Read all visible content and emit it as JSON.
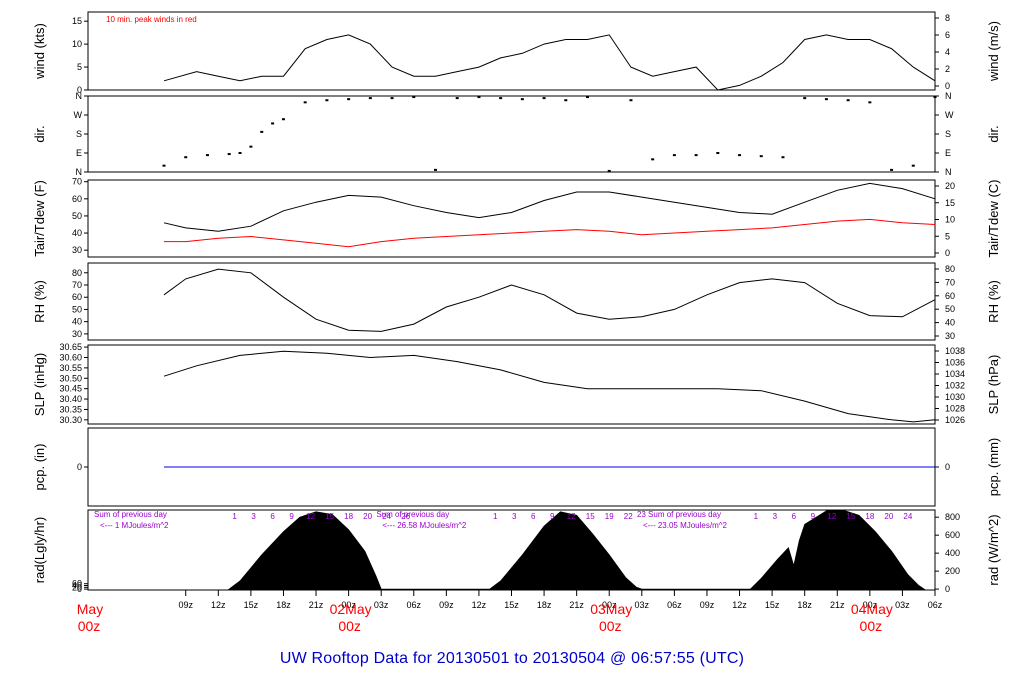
{
  "title": "UW Rooftop Data for 20130501  to  20130504 @ 06:57:55  (UTC)",
  "colors": {
    "ink": "#000000",
    "red": "#ff0000",
    "blue": "#0000ee",
    "purple": "#9900cc",
    "title": "#0000cc"
  },
  "time_axis": {
    "hour_ticks": [
      "09z",
      "12z",
      "15z",
      "18z",
      "21z",
      "00z",
      "03z",
      "06z",
      "09z",
      "12z",
      "15z",
      "18z",
      "21z",
      "00z",
      "03z",
      "06z",
      "09z",
      "12z",
      "15z",
      "18z",
      "21z",
      "00z",
      "03z",
      "06z"
    ],
    "day_labels": [
      {
        "day": "May",
        "hour": "00z",
        "at_hour": 0
      },
      {
        "day": "02May",
        "hour": "00z",
        "at_hour": 24
      },
      {
        "day": "03May",
        "hour": "00z",
        "at_hour": 48
      },
      {
        "day": "04May",
        "hour": "00z",
        "at_hour": 72
      }
    ]
  },
  "chart_data": [
    {
      "id": "wind",
      "type": "line",
      "ylabel_left": "wind (kts)",
      "ylabel_right": "wind (m/s)",
      "ylim": [
        0,
        17
      ],
      "left_ticks": [
        0,
        5,
        10,
        15
      ],
      "right_ticks": [
        0,
        2,
        4,
        6,
        8
      ],
      "note": "10 min. peak winds in red",
      "series": [
        {
          "color": "#000000",
          "x_hours": [
            7,
            10,
            12,
            14,
            16,
            18,
            20,
            22,
            24,
            26,
            28,
            30,
            32,
            34,
            36,
            38,
            40,
            42,
            44,
            46,
            48,
            50,
            52,
            54,
            56,
            58,
            60,
            62,
            64,
            66,
            68,
            70,
            72,
            74,
            76,
            78
          ],
          "y": [
            2,
            4,
            3,
            2,
            3,
            3,
            9,
            11,
            12,
            10,
            5,
            3,
            3,
            4,
            5,
            7,
            8,
            10,
            11,
            11,
            12,
            5,
            3,
            4,
            5,
            0,
            1,
            3,
            6,
            11,
            12,
            11,
            11,
            9,
            5,
            2
          ]
        }
      ]
    },
    {
      "id": "dir",
      "type": "scatter",
      "ylabel_left": "dir.",
      "ylabel_right": "dir.",
      "ylim": [
        0,
        360
      ],
      "tick_labels": [
        "N",
        "E",
        "S",
        "W",
        "N"
      ],
      "series": [
        {
          "color": "#000000",
          "x_hours": [
            7,
            9,
            11,
            13,
            14,
            15,
            16,
            17,
            18,
            20,
            22,
            24,
            26,
            28,
            30,
            32,
            34,
            36,
            38,
            40,
            42,
            44,
            46,
            48,
            50,
            52,
            54,
            56,
            58,
            60,
            62,
            64,
            66,
            68,
            70,
            72,
            74,
            76,
            78
          ],
          "y": [
            30,
            70,
            80,
            85,
            90,
            120,
            190,
            230,
            250,
            330,
            340,
            345,
            350,
            350,
            355,
            10,
            350,
            355,
            350,
            345,
            350,
            340,
            355,
            5,
            340,
            60,
            80,
            80,
            90,
            80,
            75,
            70,
            350,
            345,
            340,
            330,
            10,
            30,
            355
          ]
        }
      ]
    },
    {
      "id": "temp",
      "type": "line",
      "ylabel_left": "Tair/Tdew (F)",
      "ylabel_right": "Tair/Tdew (C)",
      "ylim": [
        26,
        71
      ],
      "left_ticks": [
        30,
        40,
        50,
        60,
        70
      ],
      "right_ticks": [
        0,
        5,
        10,
        15,
        20
      ],
      "series": [
        {
          "color": "#000000",
          "x_hours": [
            7,
            9,
            12,
            15,
            18,
            21,
            24,
            27,
            30,
            33,
            36,
            39,
            42,
            45,
            48,
            51,
            54,
            57,
            60,
            63,
            66,
            69,
            72,
            75,
            78
          ],
          "y": [
            46,
            43,
            41,
            44,
            53,
            58,
            62,
            61,
            56,
            52,
            49,
            52,
            59,
            64,
            64,
            61,
            58,
            55,
            52,
            51,
            58,
            65,
            69,
            66,
            60
          ]
        },
        {
          "color": "#ff0000",
          "x_hours": [
            7,
            9,
            12,
            15,
            18,
            21,
            24,
            27,
            30,
            33,
            36,
            39,
            42,
            45,
            48,
            51,
            54,
            57,
            60,
            63,
            66,
            69,
            72,
            75,
            78
          ],
          "y": [
            35,
            35,
            37,
            38,
            36,
            34,
            32,
            35,
            37,
            38,
            39,
            40,
            41,
            42,
            41,
            39,
            40,
            41,
            42,
            43,
            45,
            47,
            48,
            46,
            45
          ]
        }
      ]
    },
    {
      "id": "rh",
      "type": "line",
      "ylabel_left": "RH (%)",
      "ylabel_right": "RH (%)",
      "ylim": [
        25,
        88
      ],
      "left_ticks": [
        30,
        40,
        50,
        60,
        70,
        80
      ],
      "right_ticks": [
        30,
        40,
        50,
        60,
        70,
        80
      ],
      "series": [
        {
          "color": "#000000",
          "x_hours": [
            7,
            9,
            12,
            15,
            18,
            21,
            24,
            27,
            30,
            33,
            36,
            39,
            42,
            45,
            48,
            51,
            54,
            57,
            60,
            63,
            66,
            69,
            72,
            75,
            78
          ],
          "y": [
            62,
            75,
            83,
            80,
            60,
            42,
            33,
            32,
            38,
            52,
            60,
            70,
            62,
            47,
            42,
            44,
            50,
            62,
            72,
            75,
            72,
            55,
            45,
            44,
            58
          ]
        }
      ]
    },
    {
      "id": "slp",
      "type": "line",
      "ylabel_left": "SLP (inHg)",
      "ylabel_right": "SLP (hPa)",
      "ylim": [
        30.28,
        30.66
      ],
      "left_ticks": [
        30.3,
        30.35,
        30.4,
        30.45,
        30.5,
        30.55,
        30.6,
        30.65
      ],
      "right_ticks": [
        1026,
        1028,
        1030,
        1032,
        1034,
        1036,
        1038
      ],
      "series": [
        {
          "color": "#000000",
          "x_hours": [
            7,
            10,
            14,
            18,
            22,
            26,
            30,
            34,
            38,
            42,
            46,
            50,
            54,
            58,
            62,
            66,
            70,
            74,
            76,
            78
          ],
          "y": [
            30.51,
            30.56,
            30.61,
            30.63,
            30.62,
            30.6,
            30.61,
            30.58,
            30.54,
            30.48,
            30.45,
            30.45,
            30.45,
            30.45,
            30.44,
            30.39,
            30.33,
            30.3,
            30.29,
            30.3
          ]
        }
      ]
    },
    {
      "id": "pcp",
      "type": "line",
      "ylabel_left": "pcp. (in)",
      "ylabel_right": "pcp. (mm)",
      "ylim": [
        -1,
        1
      ],
      "left_ticks": [
        0
      ],
      "right_ticks": [
        0
      ],
      "series": [
        {
          "color": "#0000ee",
          "x_hours": [
            7,
            78
          ],
          "y": [
            0,
            0
          ]
        }
      ]
    },
    {
      "id": "rad",
      "type": "area",
      "ylabel_left": "rad(Lgly/hr)",
      "ylabel_right": "rad (W/m^2)",
      "ylim": [
        -10,
        880
      ],
      "right_ticks": [
        0,
        200,
        400,
        600,
        800
      ],
      "left_ticks": [
        0,
        20,
        40,
        60
      ],
      "series": [
        {
          "color": "#000000",
          "x_hours": [
            13,
            14,
            16,
            18,
            19.5,
            21,
            22.5,
            24,
            25.5,
            26.5,
            27,
            37,
            38,
            40,
            42,
            43.5,
            45,
            46.5,
            48,
            49.5,
            50.5,
            51,
            61,
            62,
            63.5,
            64.5,
            65,
            65.5,
            66,
            68,
            69.5,
            71,
            72.5,
            74,
            75.5,
            76.5,
            77
          ],
          "y": [
            0,
            90,
            380,
            640,
            800,
            860,
            830,
            660,
            420,
            150,
            0,
            0,
            90,
            380,
            700,
            860,
            820,
            610,
            380,
            130,
            20,
            0,
            0,
            120,
            330,
            460,
            260,
            540,
            720,
            870,
            880,
            820,
            640,
            420,
            160,
            40,
            0
          ]
        }
      ],
      "annotations": [
        {
          "text": "Sum of previous day",
          "at_hour": 0
        },
        {
          "text": "<--- 1  MJoules/m^2",
          "at_hour": 0
        },
        {
          "text": "Sum of previous day",
          "at_hour": 26
        },
        {
          "text": "<--- 26.58 MJoules/m^2",
          "at_hour": 26
        },
        {
          "text": "23 Sum of previous day",
          "at_hour": 50
        },
        {
          "text": "<--- 23.05 MJoules/m^2",
          "at_hour": 50
        }
      ],
      "hour_marks": [
        "1",
        "3",
        "6",
        "9",
        "12",
        "15",
        "18",
        "20",
        "24",
        "26",
        "1",
        "3",
        "6",
        "9",
        "12",
        "15",
        "19",
        "22",
        "1",
        "3",
        "6",
        "9",
        "12",
        "15",
        "18",
        "20",
        "24"
      ]
    }
  ]
}
